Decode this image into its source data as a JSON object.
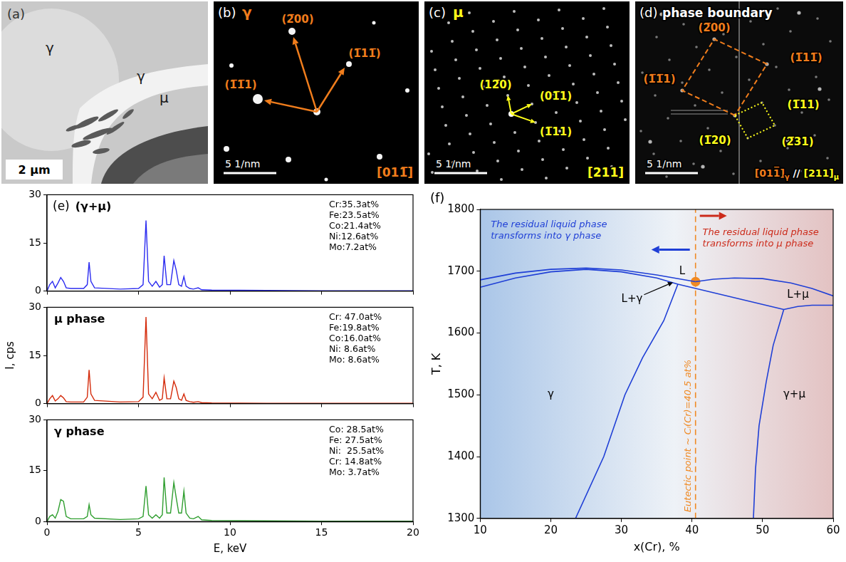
{
  "panels": [
    {
      "letter": "(a)",
      "labels": [
        "γ",
        "γ",
        "μ"
      ],
      "scale_bar": "2 μm"
    },
    {
      "letter": "(b)",
      "title": "γ",
      "spots": [
        "(2̅00)",
        "(1̅11̅)",
        "(1̅1̅1)"
      ],
      "zone_axis": "[011̅]",
      "scale_bar": "5 1/nm"
    },
    {
      "letter": "(c)",
      "title": "μ",
      "spots": [
        "(12̅0)",
        "(01̅1)",
        "(1̅11)"
      ],
      "zone_axis": "[211]",
      "scale_bar": "5 1/nm"
    },
    {
      "letter": "(d)",
      "title": "phase boundary",
      "gamma_spots": [
        "(2̅00)",
        "(1̅11̅)",
        "(1̅1̅1)"
      ],
      "mu_spots": [
        "(1̅11)",
        "(1̅20)",
        "(2̅31)"
      ],
      "zone_axes": [
        {
          "text": "[011̅]",
          "phase": "γ"
        },
        {
          "text": "[211]",
          "phase": "μ"
        }
      ],
      "separator": "//",
      "scale_bar": "5 1/nm"
    }
  ],
  "chart_data": [
    {
      "type": "line",
      "letter": "(e)",
      "title": "(γ+μ)",
      "annotations": [
        "Cr:35.3at%",
        "Fe:23.5at%",
        "Co:21.4at%",
        "Ni:12.6at%",
        "Mo:7.2at%"
      ],
      "xlim": [
        0,
        20
      ],
      "xticks": [
        0,
        5,
        10,
        15,
        20
      ],
      "ylim": [
        0,
        30
      ],
      "yticks": [
        0,
        15,
        30
      ],
      "tick_labels": "y",
      "grid": false,
      "x": [
        0,
        0.15,
        0.3,
        0.45,
        0.6,
        0.75,
        0.9,
        1.05,
        1.3,
        2,
        2.2,
        2.3,
        2.4,
        2.6,
        4,
        5,
        5.25,
        5.41,
        5.55,
        5.75,
        5.95,
        6.15,
        6.3,
        6.4,
        6.55,
        6.75,
        6.93,
        7.06,
        7.2,
        7.35,
        7.48,
        7.6,
        7.8,
        8,
        8.26,
        8.45,
        9,
        12,
        15,
        20
      ],
      "series": [
        {
          "color": "#2b2bf0",
          "values": [
            0,
            2,
            3,
            1,
            2.5,
            4.2,
            3,
            1,
            0.8,
            0.8,
            2,
            9,
            3,
            1,
            0.6,
            0.8,
            2,
            22,
            3,
            1.5,
            3,
            1.2,
            2,
            11,
            2,
            2,
            9.5,
            6.5,
            2,
            1.5,
            4.5,
            1.5,
            0.8,
            0.6,
            1,
            0.4,
            0.3,
            0.2,
            0.1,
            0.1
          ]
        }
      ]
    },
    {
      "type": "line",
      "title": "μ phase",
      "annotations": [
        "Cr: 47.0at%",
        "Fe:19.8at%",
        "Co:16.0at%",
        "Ni: 8.6at%",
        "Mo: 8.6at%"
      ],
      "y_label": "I, cps",
      "xlim": [
        0,
        20
      ],
      "xticks": [
        0,
        5,
        10,
        15,
        20
      ],
      "ylim": [
        0,
        30
      ],
      "yticks": [
        0,
        15,
        30
      ],
      "tick_labels": "y",
      "grid": false,
      "x": [
        0,
        0.15,
        0.3,
        0.45,
        0.6,
        0.75,
        0.9,
        1.05,
        1.3,
        2,
        2.2,
        2.3,
        2.4,
        2.6,
        4,
        5,
        5.25,
        5.41,
        5.55,
        5.75,
        5.95,
        6.15,
        6.3,
        6.4,
        6.55,
        6.75,
        6.93,
        7.06,
        7.2,
        7.35,
        7.48,
        7.6,
        7.8,
        8,
        8.26,
        8.45,
        9,
        12,
        15,
        20
      ],
      "series": [
        {
          "color": "#d42a0a",
          "values": [
            0,
            1.5,
            2.5,
            0.8,
            1.5,
            2.5,
            1.8,
            0.6,
            0.5,
            0.5,
            2,
            10.5,
            3,
            1,
            0.5,
            0.6,
            2,
            27,
            3,
            1.5,
            3.5,
            1,
            1.5,
            8,
            1.5,
            1.5,
            7,
            5,
            1.5,
            1,
            3,
            1,
            0.6,
            0.4,
            0.6,
            0.3,
            0.2,
            0.1,
            0.1,
            0.1
          ]
        }
      ]
    },
    {
      "type": "line",
      "title": "γ phase",
      "annotations": [
        "Co: 28.5at%",
        "Fe: 27.5at%",
        "Ni:  25.5at%",
        "Cr: 14.8at%",
        "Mo: 3.7at%"
      ],
      "x_label": "E, keV",
      "xlim": [
        0,
        20
      ],
      "xticks": [
        0,
        5,
        10,
        15,
        20
      ],
      "ylim": [
        0,
        30
      ],
      "yticks": [
        0,
        15,
        30
      ],
      "grid": false,
      "x": [
        0,
        0.15,
        0.3,
        0.45,
        0.6,
        0.75,
        0.9,
        1.05,
        1.3,
        2,
        2.2,
        2.3,
        2.4,
        2.6,
        4,
        5,
        5.25,
        5.41,
        5.55,
        5.75,
        5.95,
        6.15,
        6.3,
        6.4,
        6.55,
        6.75,
        6.93,
        7.06,
        7.2,
        7.35,
        7.48,
        7.6,
        7.8,
        8,
        8.26,
        8.45,
        9,
        12,
        15,
        20
      ],
      "series": [
        {
          "color": "#2f9e2f",
          "values": [
            0,
            1.5,
            2,
            1,
            3,
            6.5,
            6,
            1.5,
            0.8,
            0.8,
            1.5,
            5,
            2,
            1,
            0.6,
            0.8,
            1.5,
            10.5,
            2,
            1,
            2,
            1,
            2,
            13,
            2.5,
            2.5,
            11.5,
            7,
            2.5,
            2.5,
            9,
            2.5,
            1,
            0.8,
            1.5,
            0.5,
            0.3,
            0.2,
            0.1,
            0.1
          ]
        }
      ]
    },
    {
      "type": "line",
      "letter": "(f)",
      "x_label": "x(Cr), %",
      "y_label": "T, K",
      "xlim": [
        10,
        60
      ],
      "xticks": [
        10,
        20,
        30,
        40,
        50,
        60
      ],
      "ylim": [
        1300,
        1800
      ],
      "yticks": [
        1300,
        1400,
        1500,
        1600,
        1700,
        1800
      ],
      "grid": false,
      "series": [
        {
          "color": "#1f3fd6",
          "x": [
            10,
            15,
            20,
            25,
            30,
            35,
            40.5
          ],
          "values": [
            1686,
            1697,
            1703,
            1705,
            1702,
            1694,
            1683
          ]
        },
        {
          "color": "#1f3fd6",
          "x": [
            10,
            15,
            20,
            25,
            30,
            35,
            38
          ],
          "values": [
            1674,
            1689,
            1699,
            1703,
            1699,
            1689,
            1679
          ]
        },
        {
          "color": "#1f3fd6",
          "x": [
            40.5,
            43,
            46,
            50,
            54,
            57,
            60
          ],
          "values": [
            1683,
            1687,
            1689,
            1688,
            1681,
            1672,
            1660
          ]
        },
        {
          "color": "#1f3fd6",
          "x": [
            53,
            55,
            57,
            60
          ],
          "values": [
            1638,
            1643,
            1645,
            1645
          ]
        },
        {
          "color": "#1f3fd6",
          "x": [
            38,
            53
          ],
          "values": [
            1679,
            1638
          ]
        },
        {
          "color": "#1f3fd6",
          "x": [
            38,
            36,
            33,
            30.5,
            27.5,
            23.5
          ],
          "values": [
            1679,
            1620,
            1560,
            1500,
            1400,
            1300
          ]
        },
        {
          "color": "#1f3fd6",
          "x": [
            53,
            51.5,
            50.5,
            49.5,
            49,
            48.7
          ],
          "values": [
            1638,
            1580,
            1520,
            1450,
            1380,
            1300
          ]
        },
        {
          "color": "#f08a24",
          "line_style": "dashed",
          "x": [
            40.5,
            40.5
          ],
          "values": [
            1300,
            1800
          ]
        },
        {
          "color": "#f08a24",
          "line_style": "none",
          "marker": "circle",
          "x": [
            40.5
          ],
          "values": [
            1683
          ]
        }
      ],
      "annotations": [
        {
          "text": "L",
          "x": 38.6,
          "y": 1700
        },
        {
          "text": "L+γ",
          "x": 31.5,
          "y": 1655,
          "arrow_to": [
            37.3,
            1682
          ]
        },
        {
          "text": "L+μ",
          "x": 55,
          "y": 1661
        },
        {
          "text": "γ",
          "x": 20,
          "y": 1500
        },
        {
          "text": "γ+μ",
          "x": 54.5,
          "y": 1500
        },
        {
          "text": "The residual liquid phase transforms into γ phase",
          "x": 11.5,
          "y": 1782,
          "color": "#1f3fd6"
        },
        {
          "text": "The residual liquid phase transforms into μ phase",
          "x": 41.5,
          "y": 1770,
          "color": "#cc2a1a"
        },
        {
          "text": "Eutectic point ~ Cₗ(Cr)=40.5 at%",
          "x": 39.5,
          "y": 1310,
          "color": "#f08a24",
          "orientation": "vertical"
        }
      ]
    }
  ]
}
